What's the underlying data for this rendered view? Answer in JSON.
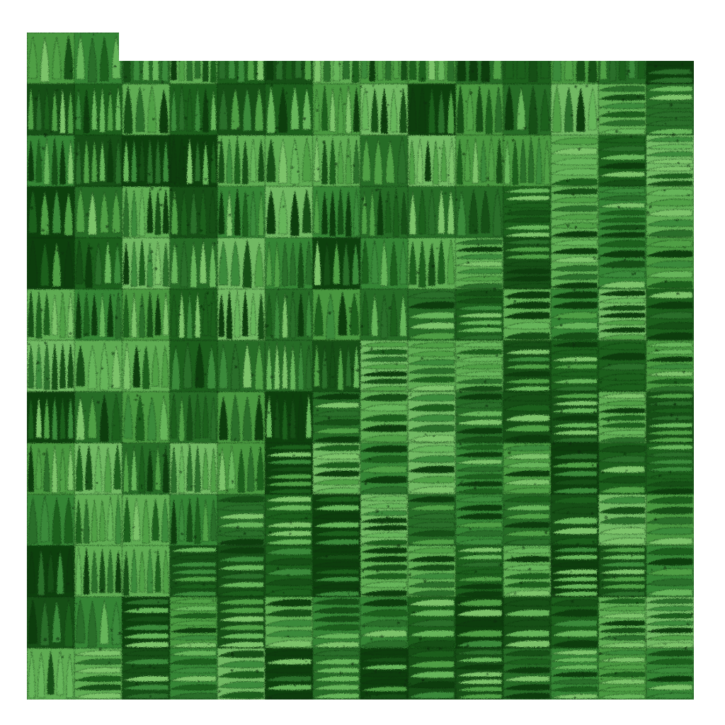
{
  "image": {
    "subject": "staircase-mosaic-of-green-leaf-like-tiles",
    "background_color": "#ffffff",
    "palette": [
      "#0f3d0f",
      "#164f16",
      "#1d5f1d",
      "#2a6e2a",
      "#3a8a3a",
      "#4f9f45",
      "#66b55a",
      "#7bc36b"
    ],
    "dark_shade": "#0a2a0a",
    "texture": "vertical-strokes-upper-left-horizontal-bands-lower-right"
  }
}
